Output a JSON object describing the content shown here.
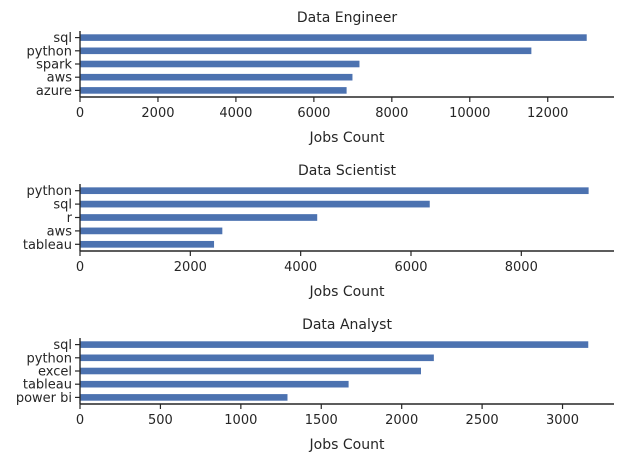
{
  "chart_data": [
    {
      "type": "bar",
      "orientation": "horizontal",
      "title": "Data Engineer",
      "xlabel": "Jobs Count",
      "ylabel": "",
      "categories": [
        "sql",
        "python",
        "spark",
        "aws",
        "azure"
      ],
      "values": [
        13000,
        11580,
        7170,
        6990,
        6840
      ],
      "xlim": [
        0,
        13700
      ],
      "xticks": [
        0,
        2000,
        4000,
        6000,
        8000,
        10000,
        12000
      ],
      "color": "#4c72b0"
    },
    {
      "type": "bar",
      "orientation": "horizontal",
      "title": "Data Scientist",
      "xlabel": "Jobs Count",
      "ylabel": "",
      "categories": [
        "python",
        "sql",
        "r",
        "aws",
        "tableau"
      ],
      "values": [
        9220,
        6340,
        4300,
        2580,
        2430
      ],
      "xlim": [
        0,
        9680
      ],
      "xticks": [
        0,
        2000,
        4000,
        6000,
        8000
      ],
      "color": "#4c72b0"
    },
    {
      "type": "bar",
      "orientation": "horizontal",
      "title": "Data Analyst",
      "xlabel": "Jobs Count",
      "ylabel": "",
      "categories": [
        "sql",
        "python",
        "excel",
        "tableau",
        "power bi"
      ],
      "values": [
        3160,
        2200,
        2120,
        1670,
        1290
      ],
      "xlim": [
        0,
        3320
      ],
      "xticks": [
        0,
        500,
        1000,
        1500,
        2000,
        2500,
        3000
      ],
      "color": "#4c72b0"
    }
  ]
}
